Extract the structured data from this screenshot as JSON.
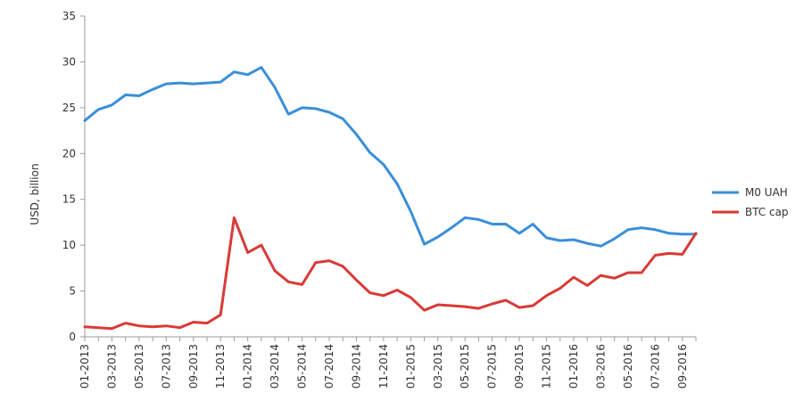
{
  "chart_data": {
    "type": "line",
    "title": "",
    "xlabel": "",
    "ylabel": "USD, billion",
    "ylim": [
      0,
      35
    ],
    "yticks": [
      0,
      5,
      10,
      15,
      20,
      25,
      30,
      35
    ],
    "grid": false,
    "legend_position": "right",
    "categories": [
      "01-2013",
      "02-2013",
      "03-2013",
      "04-2013",
      "05-2013",
      "06-2013",
      "07-2013",
      "08-2013",
      "09-2013",
      "10-2013",
      "11-2013",
      "12-2013",
      "01-2014",
      "02-2014",
      "03-2014",
      "04-2014",
      "05-2014",
      "06-2014",
      "07-2014",
      "08-2014",
      "09-2014",
      "10-2014",
      "11-2014",
      "12-2014",
      "01-2015",
      "02-2015",
      "03-2015",
      "04-2015",
      "05-2015",
      "06-2015",
      "07-2015",
      "08-2015",
      "09-2015",
      "10-2015",
      "11-2015",
      "12-2015",
      "01-2016",
      "02-2016",
      "03-2016",
      "04-2016",
      "05-2016",
      "06-2016",
      "07-2016",
      "08-2016",
      "09-2016",
      "10-2016"
    ],
    "x_tick_labels": [
      "01-2013",
      "03-2013",
      "05-2013",
      "07-2013",
      "09-2013",
      "11-2013",
      "01-2014",
      "03-2014",
      "05-2014",
      "07-2014",
      "09-2014",
      "11-2014",
      "01-2015",
      "03-2015",
      "05-2015",
      "07-2015",
      "09-2015",
      "11-2015",
      "01-2016",
      "03-2016",
      "05-2016",
      "07-2016",
      "09-2016"
    ],
    "series": [
      {
        "name": "M0 UAH",
        "color": "#3a8fd9",
        "values": [
          23.6,
          24.8,
          25.3,
          26.4,
          26.3,
          27.0,
          27.6,
          27.7,
          27.6,
          27.7,
          27.8,
          28.9,
          28.6,
          29.4,
          27.2,
          24.3,
          25.0,
          24.9,
          24.5,
          23.8,
          22.1,
          20.1,
          18.8,
          16.7,
          13.7,
          10.1,
          10.9,
          11.9,
          13.0,
          12.8,
          12.3,
          12.3,
          11.3,
          12.3,
          10.8,
          10.5,
          10.6,
          10.2,
          9.9,
          10.7,
          11.7,
          11.9,
          11.7,
          11.3,
          11.2,
          11.2
        ]
      },
      {
        "name": "BTC cap",
        "color": "#d93a36",
        "values": [
          1.1,
          1.0,
          0.9,
          1.5,
          1.2,
          1.1,
          1.2,
          1.0,
          1.6,
          1.5,
          2.4,
          13.0,
          9.2,
          10.0,
          7.2,
          6.0,
          5.7,
          8.1,
          8.3,
          7.7,
          6.2,
          4.8,
          4.5,
          5.1,
          4.3,
          2.9,
          3.5,
          3.4,
          3.3,
          3.1,
          3.6,
          4.0,
          3.2,
          3.4,
          4.5,
          5.3,
          6.5,
          5.6,
          6.7,
          6.4,
          7.0,
          7.0,
          8.9,
          9.1,
          9.0,
          11.3
        ]
      }
    ]
  }
}
